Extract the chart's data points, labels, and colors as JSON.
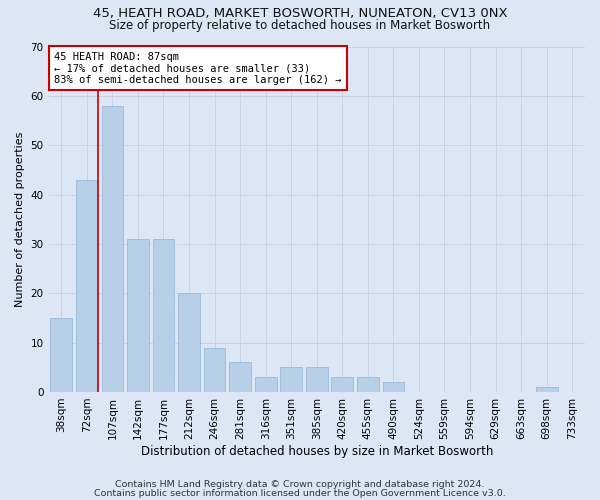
{
  "title1": "45, HEATH ROAD, MARKET BOSWORTH, NUNEATON, CV13 0NX",
  "title2": "Size of property relative to detached houses in Market Bosworth",
  "xlabel": "Distribution of detached houses by size in Market Bosworth",
  "ylabel": "Number of detached properties",
  "bar_values": [
    15,
    43,
    58,
    31,
    31,
    20,
    9,
    6,
    3,
    5,
    5,
    3,
    3,
    2,
    0,
    0,
    0,
    0,
    0,
    1,
    0
  ],
  "bin_labels": [
    "38sqm",
    "72sqm",
    "107sqm",
    "142sqm",
    "177sqm",
    "212sqm",
    "246sqm",
    "281sqm",
    "316sqm",
    "351sqm",
    "385sqm",
    "420sqm",
    "455sqm",
    "490sqm",
    "524sqm",
    "559sqm",
    "594sqm",
    "629sqm",
    "663sqm",
    "698sqm",
    "733sqm"
  ],
  "bar_color": "#b8cfe8",
  "bar_edgecolor": "#90b4d8",
  "grid_color": "#c8d4e4",
  "background_color": "#dce6f5",
  "annotation_box_color": "#ffffff",
  "annotation_box_edgecolor": "#cc0000",
  "vline_color": "#cc0000",
  "vline_x": 1.45,
  "ylim": [
    0,
    70
  ],
  "yticks": [
    0,
    10,
    20,
    30,
    40,
    50,
    60,
    70
  ],
  "footnote1": "Contains HM Land Registry data © Crown copyright and database right 2024.",
  "footnote2": "Contains public sector information licensed under the Open Government Licence v3.0.",
  "title1_fontsize": 9.5,
  "title2_fontsize": 8.5,
  "xlabel_fontsize": 8.5,
  "ylabel_fontsize": 8,
  "tick_fontsize": 7.5,
  "annotation_fontsize": 7.5,
  "footnote_fontsize": 6.8
}
